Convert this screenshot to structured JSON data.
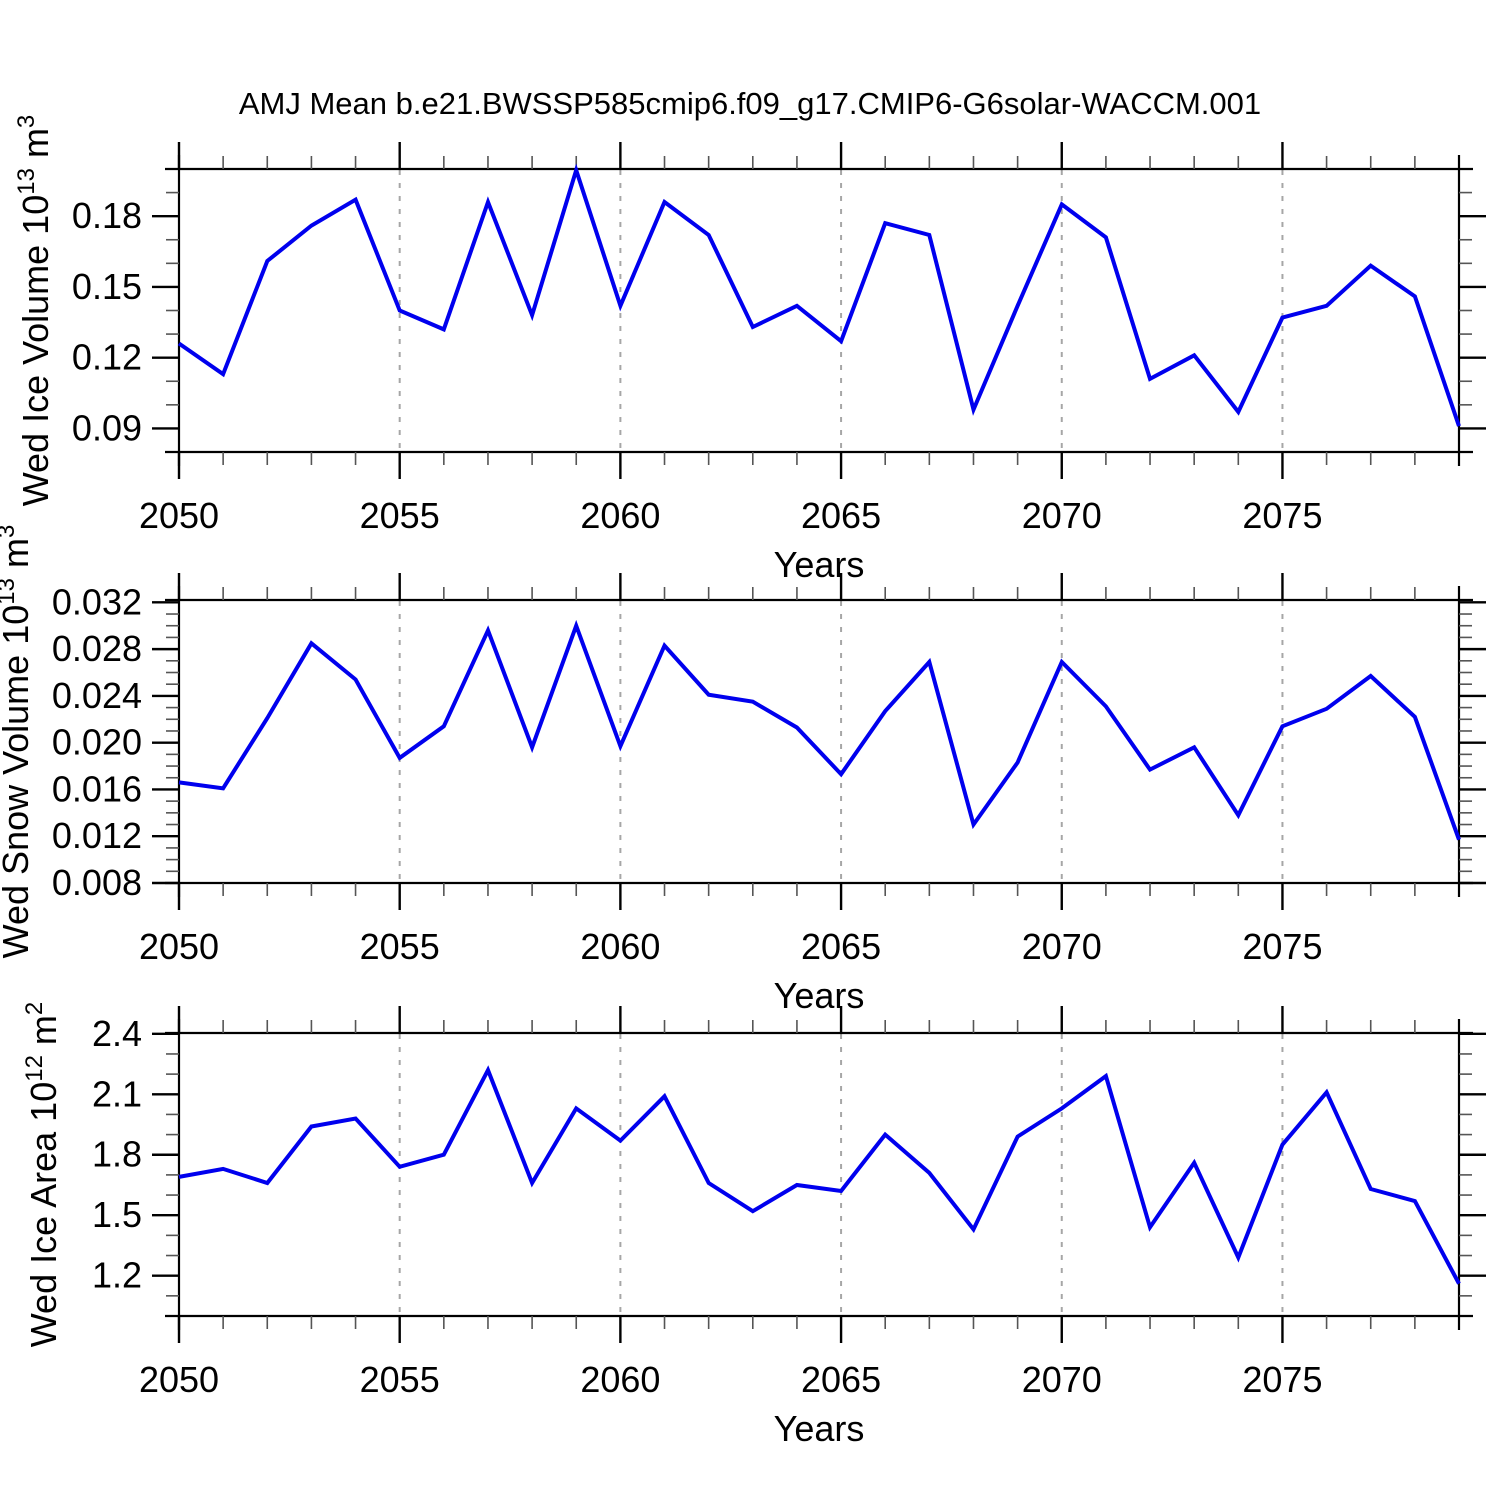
{
  "title": "AMJ Mean b.e21.BWSSP585cmip6.f09_g17.CMIP6-G6solar-WACCM.001",
  "colors": {
    "line": "#0000ee",
    "grid": "#a6a6a6",
    "axis": "#000000",
    "minor_tick": "#555555",
    "text": "#000000",
    "background": "#ffffff"
  },
  "x_axis": {
    "label": "Years",
    "start_year": 2050,
    "end_year": 2079,
    "major_ticks": [
      2050,
      2055,
      2060,
      2065,
      2070,
      2075
    ],
    "gridline_years": [
      2055,
      2060,
      2065,
      2070,
      2075
    ]
  },
  "chart_data": [
    {
      "type": "line",
      "name": "ice-volume",
      "ylabel_text": "Wed Ice Volume 10^13 m^3",
      "ylabel_parts": [
        {
          "t": "Wed Ice Volume 10"
        },
        {
          "t": "13",
          "sup": true
        },
        {
          "t": " m"
        },
        {
          "t": "3",
          "sup": true
        }
      ],
      "xlabel": "Years",
      "ylim": [
        0.08,
        0.2
      ],
      "ytick_values": [
        0.09,
        0.12,
        0.15,
        0.18
      ],
      "ytick_labels": [
        "0.09",
        "0.12",
        "0.15",
        "0.18"
      ],
      "yminor_step": 0.01,
      "x": [
        2050,
        2051,
        2052,
        2053,
        2054,
        2055,
        2056,
        2057,
        2058,
        2059,
        2060,
        2061,
        2062,
        2063,
        2064,
        2065,
        2066,
        2067,
        2068,
        2069,
        2070,
        2071,
        2072,
        2073,
        2074,
        2075,
        2076,
        2077,
        2078,
        2079
      ],
      "values": [
        0.126,
        0.113,
        0.161,
        0.176,
        0.187,
        0.14,
        0.132,
        0.186,
        0.138,
        0.1995,
        0.142,
        0.186,
        0.172,
        0.133,
        0.142,
        0.127,
        0.177,
        0.172,
        0.098,
        0.142,
        0.185,
        0.171,
        0.111,
        0.121,
        0.097,
        0.137,
        0.142,
        0.159,
        0.146,
        0.091
      ]
    },
    {
      "type": "line",
      "name": "snow-volume",
      "ylabel_text": "Wed Snow Volume 10^13 m^3",
      "ylabel_parts": [
        {
          "t": "Wed Snow Volume 10"
        },
        {
          "t": "13",
          "sup": true
        },
        {
          "t": " m"
        },
        {
          "t": "3",
          "sup": true
        }
      ],
      "xlabel": "Years",
      "ylim": [
        0.008,
        0.0322
      ],
      "ytick_values": [
        0.008,
        0.012,
        0.016,
        0.02,
        0.024,
        0.028,
        0.032
      ],
      "ytick_labels": [
        "0.008",
        "0.012",
        "0.016",
        "0.020",
        "0.024",
        "0.028",
        "0.032"
      ],
      "yminor_step": 0.001,
      "x": [
        2050,
        2051,
        2052,
        2053,
        2054,
        2055,
        2056,
        2057,
        2058,
        2059,
        2060,
        2061,
        2062,
        2063,
        2064,
        2065,
        2066,
        2067,
        2068,
        2069,
        2070,
        2071,
        2072,
        2073,
        2074,
        2075,
        2076,
        2077,
        2078,
        2079
      ],
      "values": [
        0.0166,
        0.0161,
        0.0221,
        0.0285,
        0.0254,
        0.0187,
        0.0214,
        0.0296,
        0.0196,
        0.03,
        0.0197,
        0.0283,
        0.0241,
        0.0235,
        0.0213,
        0.0173,
        0.0227,
        0.0269,
        0.013,
        0.0183,
        0.0269,
        0.0231,
        0.0177,
        0.0196,
        0.0138,
        0.0214,
        0.0229,
        0.0257,
        0.0222,
        0.0117
      ]
    },
    {
      "type": "line",
      "name": "ice-area",
      "ylabel_text": "Wed Ice Area 10^12 m^2",
      "ylabel_parts": [
        {
          "t": "Wed Ice Area 10"
        },
        {
          "t": "12",
          "sup": true
        },
        {
          "t": " m"
        },
        {
          "t": "2",
          "sup": true
        }
      ],
      "xlabel": "Years",
      "ylim": [
        1.0,
        2.404
      ],
      "ytick_values": [
        1.2,
        1.5,
        1.8,
        2.1,
        2.4
      ],
      "ytick_labels": [
        "1.2",
        "1.5",
        "1.8",
        "2.1",
        "2.4"
      ],
      "yminor_step": 0.1,
      "x": [
        2050,
        2051,
        2052,
        2053,
        2054,
        2055,
        2056,
        2057,
        2058,
        2059,
        2060,
        2061,
        2062,
        2063,
        2064,
        2065,
        2066,
        2067,
        2068,
        2069,
        2070,
        2071,
        2072,
        2073,
        2074,
        2075,
        2076,
        2077,
        2078,
        2079
      ],
      "values": [
        1.69,
        1.73,
        1.66,
        1.94,
        1.98,
        1.74,
        1.8,
        2.22,
        1.66,
        2.03,
        1.87,
        2.09,
        1.66,
        1.52,
        1.65,
        1.62,
        1.9,
        1.71,
        1.43,
        1.89,
        2.03,
        2.19,
        1.44,
        1.76,
        1.29,
        1.85,
        2.11,
        1.63,
        1.57,
        1.16
      ]
    }
  ]
}
